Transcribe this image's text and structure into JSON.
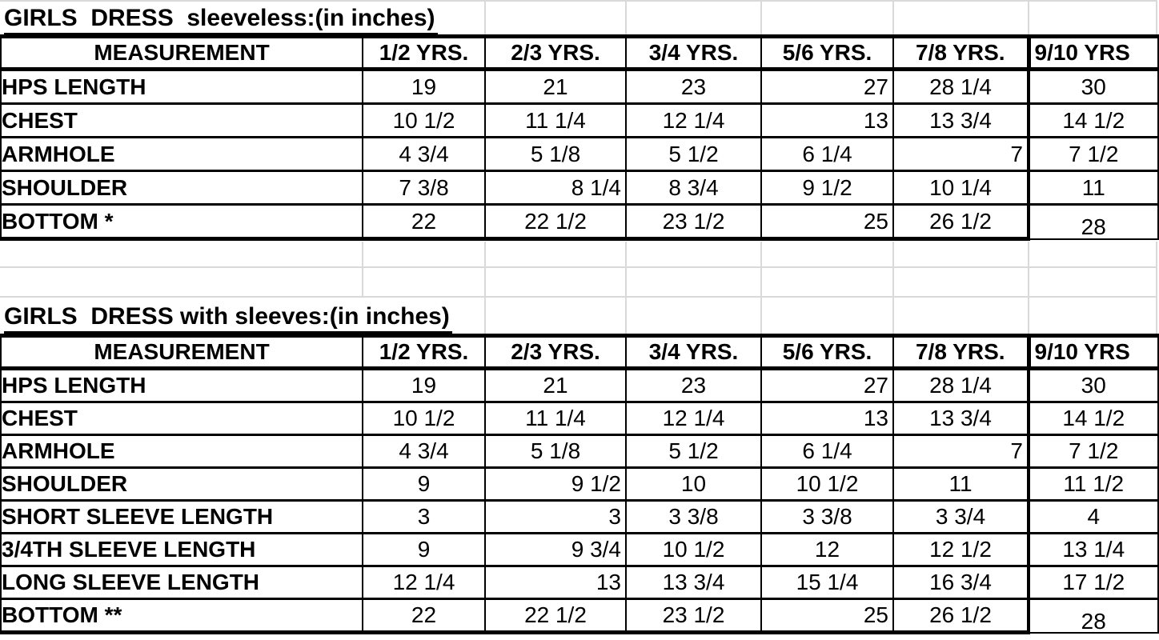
{
  "sheet": {
    "grid_color": "#d9d9d9",
    "border_color": "#000000",
    "tables": [
      {
        "title": "GIRLS  DRESS  sleeveless:(in inches)",
        "headers": [
          "MEASUREMENT",
          "1/2 YRS.",
          "2/3 YRS.",
          "3/4 YRS.",
          "5/6 YRS.",
          "7/8 YRS.",
          "9/10 YRS"
        ],
        "rows": [
          {
            "label": "HPS LENGTH",
            "values": [
              "19",
              "21",
              "23",
              "27",
              "28 1/4",
              "30"
            ],
            "right_aligned": [
              3
            ]
          },
          {
            "label": "CHEST",
            "values": [
              "10 1/2",
              "11 1/4",
              "12 1/4",
              "13",
              "13 3/4",
              "14 1/2"
            ],
            "right_aligned": [
              3
            ]
          },
          {
            "label": "ARMHOLE",
            "values": [
              "4 3/4",
              "5 1/8",
              "5 1/2",
              "6 1/4",
              "7",
              "7 1/2"
            ],
            "right_aligned": [
              4
            ]
          },
          {
            "label": "SHOULDER",
            "values": [
              "7 3/8",
              "8 1/4",
              "8 3/4",
              "9 1/2",
              "10 1/4",
              "11"
            ],
            "right_aligned": [
              1
            ]
          },
          {
            "label": "BOTTOM *",
            "values": [
              "22",
              "22 1/2",
              "23 1/2",
              "25",
              "26 1/2",
              "28"
            ],
            "right_aligned": [
              3
            ]
          }
        ]
      },
      {
        "title": "GIRLS  DRESS with sleeves:(in inches)",
        "headers": [
          "MEASUREMENT",
          "1/2 YRS.",
          "2/3 YRS.",
          "3/4 YRS.",
          "5/6 YRS.",
          "7/8 YRS.",
          "9/10 YRS"
        ],
        "rows": [
          {
            "label": "HPS LENGTH",
            "values": [
              "19",
              "21",
              "23",
              "27",
              "28 1/4",
              "30"
            ],
            "right_aligned": [
              3
            ]
          },
          {
            "label": "CHEST",
            "values": [
              "10 1/2",
              "11 1/4",
              "12 1/4",
              "13",
              "13 3/4",
              "14 1/2"
            ],
            "right_aligned": [
              3
            ]
          },
          {
            "label": "ARMHOLE",
            "values": [
              "4 3/4",
              "5 1/8",
              "5 1/2",
              "6 1/4",
              "7",
              "7 1/2"
            ],
            "right_aligned": [
              4
            ]
          },
          {
            "label": "SHOULDER",
            "values": [
              "9",
              "9 1/2",
              "10",
              "10 1/2",
              "11",
              "11 1/2"
            ],
            "right_aligned": [
              1
            ]
          },
          {
            "label": "SHORT SLEEVE LENGTH",
            "values": [
              "3",
              "3",
              "3 3/8",
              "3 3/8",
              "3 3/4",
              "4"
            ],
            "right_aligned": [
              1
            ]
          },
          {
            "label": "3/4TH SLEEVE LENGTH",
            "values": [
              "9",
              "9 3/4",
              "10 1/2",
              "12",
              "12 1/2",
              "13 1/4"
            ],
            "right_aligned": [
              1
            ]
          },
          {
            "label": "LONG SLEEVE LENGTH",
            "values": [
              "12 1/4",
              "13",
              "13 3/4",
              "15 1/4",
              "16 3/4",
              "17 1/2"
            ],
            "right_aligned": [
              1
            ]
          },
          {
            "label": "BOTTOM **",
            "values": [
              "22",
              "22 1/2",
              "23 1/2",
              "25",
              "26 1/2",
              "28"
            ],
            "right_aligned": [
              3
            ]
          }
        ]
      }
    ]
  }
}
